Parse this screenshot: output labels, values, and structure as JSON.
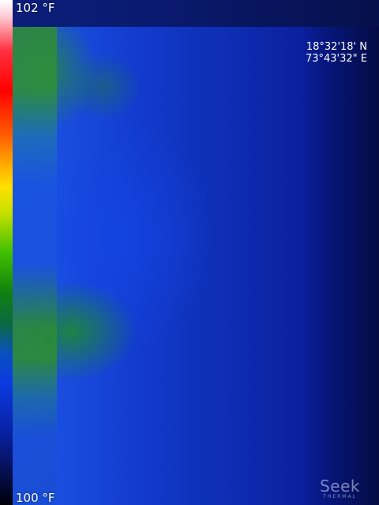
{
  "scale": {
    "max_label": "102 °F",
    "min_label": "100 °F"
  },
  "location": {
    "latitude": "18°32'18' N",
    "longitude": "73°43'32\" E"
  },
  "watermark": {
    "brand": "Seek",
    "sub": "THERMAL"
  },
  "colors": {
    "dominant": "#1546d0",
    "warm_patch": "#2f8e34",
    "cool_edge": "#04105a"
  }
}
